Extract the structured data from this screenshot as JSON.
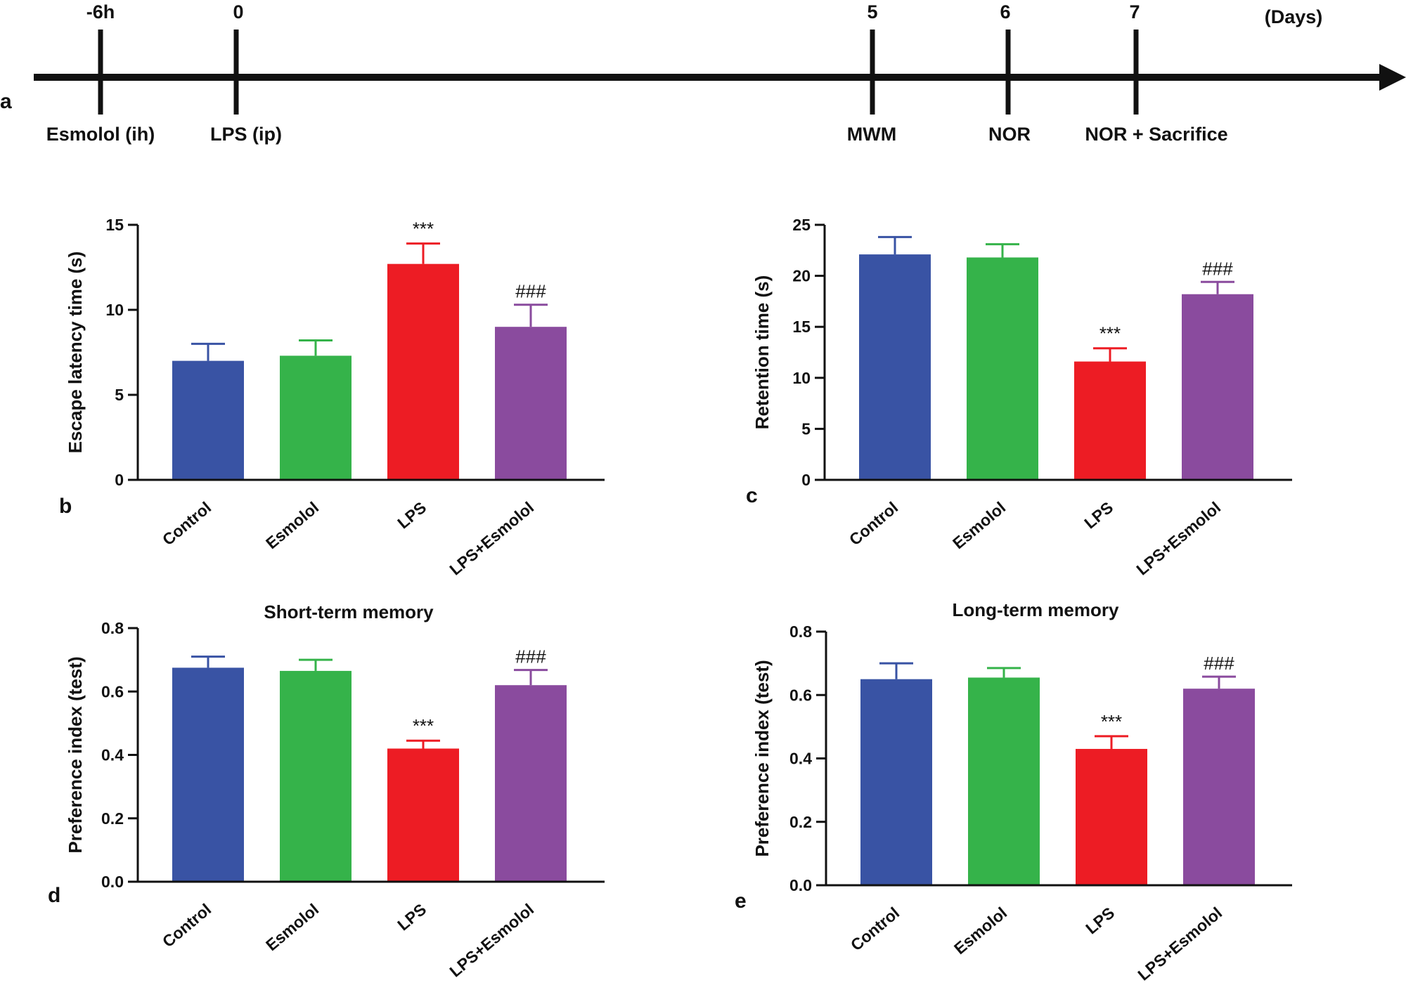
{
  "figure": {
    "timeline": {
      "panel": "a",
      "unit_label": "(Days)",
      "events": [
        {
          "time": "-6h",
          "label": "Esmolol (ih)"
        },
        {
          "time": "0",
          "label": "LPS (ip)"
        },
        {
          "time": "5",
          "label": "MWM"
        },
        {
          "time": "6",
          "label": "NOR"
        },
        {
          "time": "7",
          "label": "NOR + Sacrifice"
        }
      ]
    }
  },
  "colors": {
    "Control": "#3953a4",
    "Esmolol": "#35b34a",
    "LPS": "#ed1c24",
    "LPS+Esmolol": "#8a4b9e",
    "axis": "#111111"
  },
  "chart_data": [
    {
      "panel": "b",
      "type": "bar",
      "title": "",
      "xlabel": "",
      "ylabel": "Escape latency time (s)",
      "categories": [
        "Control",
        "Esmolol",
        "LPS",
        "LPS+Esmolol"
      ],
      "values": [
        7.0,
        7.3,
        12.7,
        9.0
      ],
      "errors": [
        1.0,
        0.9,
        1.2,
        1.3
      ],
      "significance": [
        "",
        "",
        "***",
        "###"
      ],
      "ylim": [
        0,
        15
      ],
      "yticks": [
        0,
        5,
        10,
        15
      ],
      "ytick_labels": [
        "0",
        "5",
        "10",
        "15"
      ]
    },
    {
      "panel": "c",
      "type": "bar",
      "title": "",
      "xlabel": "",
      "ylabel": "Retention time (s)",
      "categories": [
        "Control",
        "Esmolol",
        "LPS",
        "LPS+Esmolol"
      ],
      "values": [
        22.1,
        21.8,
        11.6,
        18.2
      ],
      "errors": [
        1.7,
        1.3,
        1.3,
        1.2
      ],
      "significance": [
        "",
        "",
        "***",
        "###"
      ],
      "ylim": [
        0,
        25
      ],
      "yticks": [
        0,
        5,
        10,
        15,
        20,
        25
      ],
      "ytick_labels": [
        "0",
        "5",
        "10",
        "15",
        "20",
        "25"
      ]
    },
    {
      "panel": "d",
      "type": "bar",
      "title": "Short-term memory",
      "xlabel": "",
      "ylabel": "Preference index (test)",
      "categories": [
        "Control",
        "Esmolol",
        "LPS",
        "LPS+Esmolol"
      ],
      "values": [
        0.675,
        0.665,
        0.42,
        0.62
      ],
      "errors": [
        0.035,
        0.035,
        0.025,
        0.048
      ],
      "significance": [
        "",
        "",
        "***",
        "###"
      ],
      "ylim": [
        0,
        0.8
      ],
      "yticks": [
        0,
        0.2,
        0.4,
        0.6,
        0.8
      ],
      "ytick_labels": [
        "0.0",
        "0.2",
        "0.4",
        "0.6",
        "0.8"
      ]
    },
    {
      "panel": "e",
      "type": "bar",
      "title": "Long-term memory",
      "xlabel": "",
      "ylabel": "Preference index (test)",
      "categories": [
        "Control",
        "Esmolol",
        "LPS",
        "LPS+Esmolol"
      ],
      "values": [
        0.65,
        0.655,
        0.43,
        0.62
      ],
      "errors": [
        0.05,
        0.03,
        0.04,
        0.038
      ],
      "significance": [
        "",
        "",
        "***",
        "###"
      ],
      "ylim": [
        0,
        0.8
      ],
      "yticks": [
        0,
        0.2,
        0.4,
        0.6,
        0.8
      ],
      "ytick_labels": [
        "0.0",
        "0.2",
        "0.4",
        "0.6",
        "0.8"
      ]
    }
  ]
}
